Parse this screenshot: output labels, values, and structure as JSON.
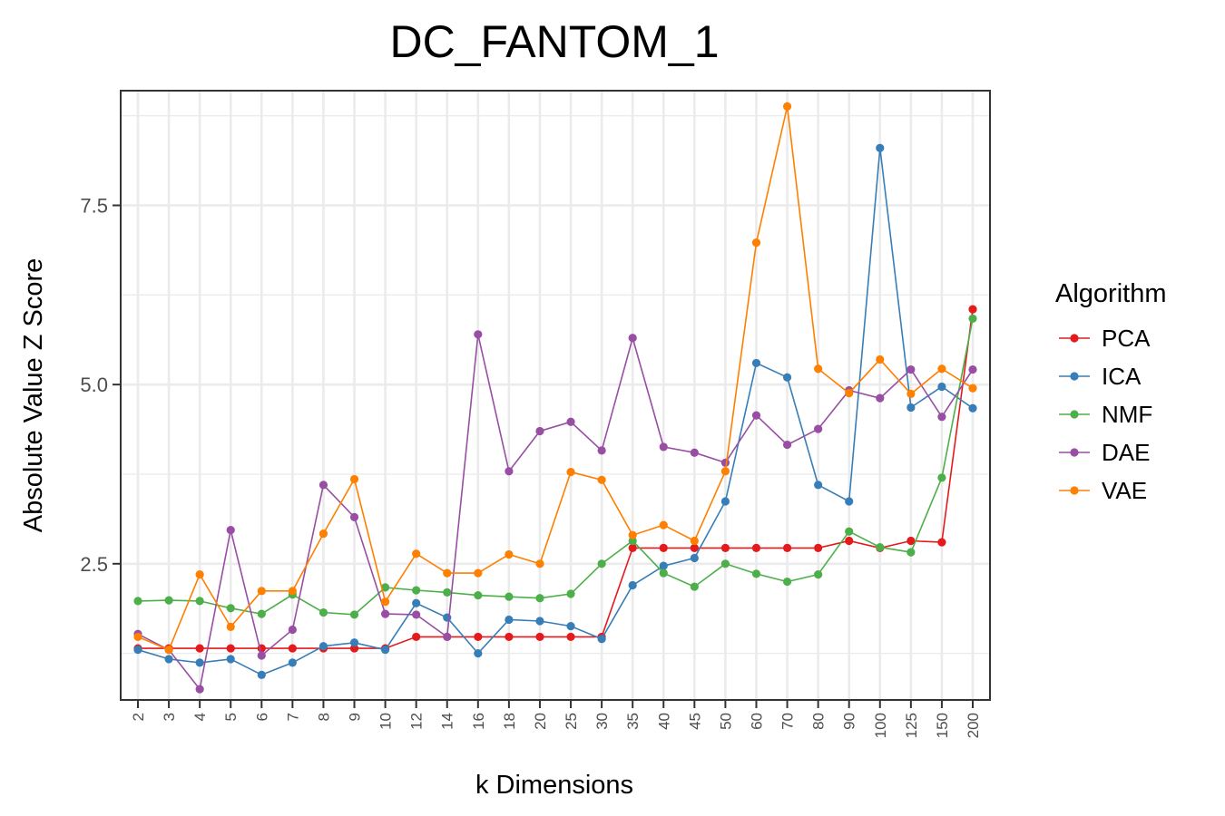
{
  "chart_data": {
    "type": "line",
    "title": "DC_FANTOM_1",
    "xlabel": "k Dimensions",
    "ylabel": "Absolute Value Z Score",
    "categories": [
      "2",
      "3",
      "4",
      "5",
      "6",
      "7",
      "8",
      "9",
      "10",
      "12",
      "14",
      "16",
      "18",
      "20",
      "25",
      "30",
      "35",
      "40",
      "45",
      "50",
      "60",
      "70",
      "80",
      "90",
      "100",
      "125",
      "150",
      "200"
    ],
    "ylim": [
      0.6,
      9.1
    ],
    "yticks": [
      2.5,
      5.0,
      7.5
    ],
    "ytick_labels": [
      "2.5",
      "5.0",
      "7.5"
    ],
    "grid": true,
    "legend": {
      "title": "Algorithm",
      "position": "right"
    },
    "series": [
      {
        "name": "PCA",
        "color": "#e41a1c",
        "values": [
          1.32,
          1.32,
          1.32,
          1.32,
          1.32,
          1.32,
          1.32,
          1.32,
          1.32,
          1.48,
          1.48,
          1.48,
          1.48,
          1.48,
          1.48,
          1.48,
          2.72,
          2.72,
          2.72,
          2.72,
          2.72,
          2.72,
          2.72,
          2.82,
          2.72,
          2.82,
          2.8,
          6.05
        ]
      },
      {
        "name": "ICA",
        "color": "#377eb8",
        "values": [
          1.3,
          1.17,
          1.12,
          1.17,
          0.95,
          1.12,
          1.35,
          1.4,
          1.3,
          1.95,
          1.75,
          1.25,
          1.72,
          1.7,
          1.63,
          1.45,
          2.2,
          2.47,
          2.58,
          3.37,
          5.3,
          5.1,
          3.6,
          3.37,
          8.3,
          4.68,
          4.97,
          4.67
        ]
      },
      {
        "name": "NMF",
        "color": "#4daf4a",
        "values": [
          1.98,
          1.99,
          1.98,
          1.88,
          1.8,
          2.07,
          1.82,
          1.79,
          2.17,
          2.13,
          2.1,
          2.06,
          2.04,
          2.02,
          2.08,
          2.5,
          2.82,
          2.37,
          2.18,
          2.5,
          2.36,
          2.25,
          2.35,
          2.95,
          2.73,
          2.66,
          3.7,
          5.92
        ]
      },
      {
        "name": "DAE",
        "color": "#984ea3",
        "values": [
          1.52,
          1.3,
          0.75,
          2.97,
          1.22,
          1.58,
          3.6,
          3.15,
          1.8,
          1.79,
          1.48,
          5.7,
          3.79,
          4.35,
          4.48,
          4.08,
          5.65,
          4.13,
          4.05,
          3.91,
          4.57,
          4.16,
          4.38,
          4.92,
          4.81,
          5.21,
          4.55,
          5.21
        ]
      },
      {
        "name": "VAE",
        "color": "#ff7f00",
        "values": [
          1.48,
          1.3,
          2.35,
          1.62,
          2.12,
          2.12,
          2.92,
          3.68,
          1.97,
          2.64,
          2.37,
          2.37,
          2.63,
          2.5,
          3.78,
          3.67,
          2.9,
          3.04,
          2.82,
          3.79,
          6.98,
          8.88,
          5.22,
          4.88,
          5.35,
          4.87,
          5.22,
          4.95
        ]
      }
    ]
  }
}
